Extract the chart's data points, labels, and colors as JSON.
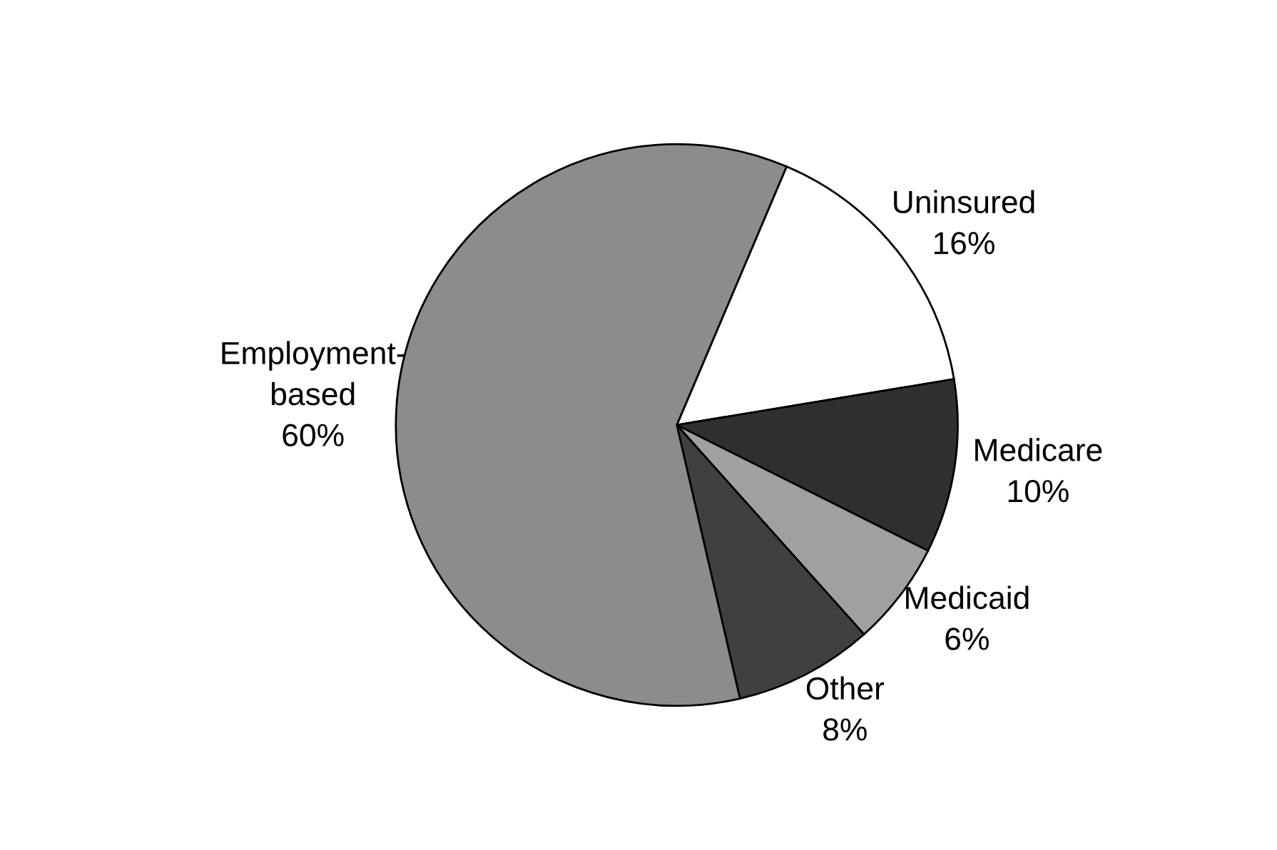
{
  "chart_data": {
    "type": "pie",
    "categories": [
      "Uninsured",
      "Medicare",
      "Medicaid",
      "Other",
      "Employment-\nbased"
    ],
    "values": [
      16,
      10,
      6,
      8,
      60
    ],
    "value_labels": [
      "16%",
      "10%",
      "6%",
      "8%",
      "60%"
    ],
    "colors": [
      "#ffffff",
      "#303030",
      "#a0a0a0",
      "#404040",
      "#8c8c8c"
    ]
  }
}
